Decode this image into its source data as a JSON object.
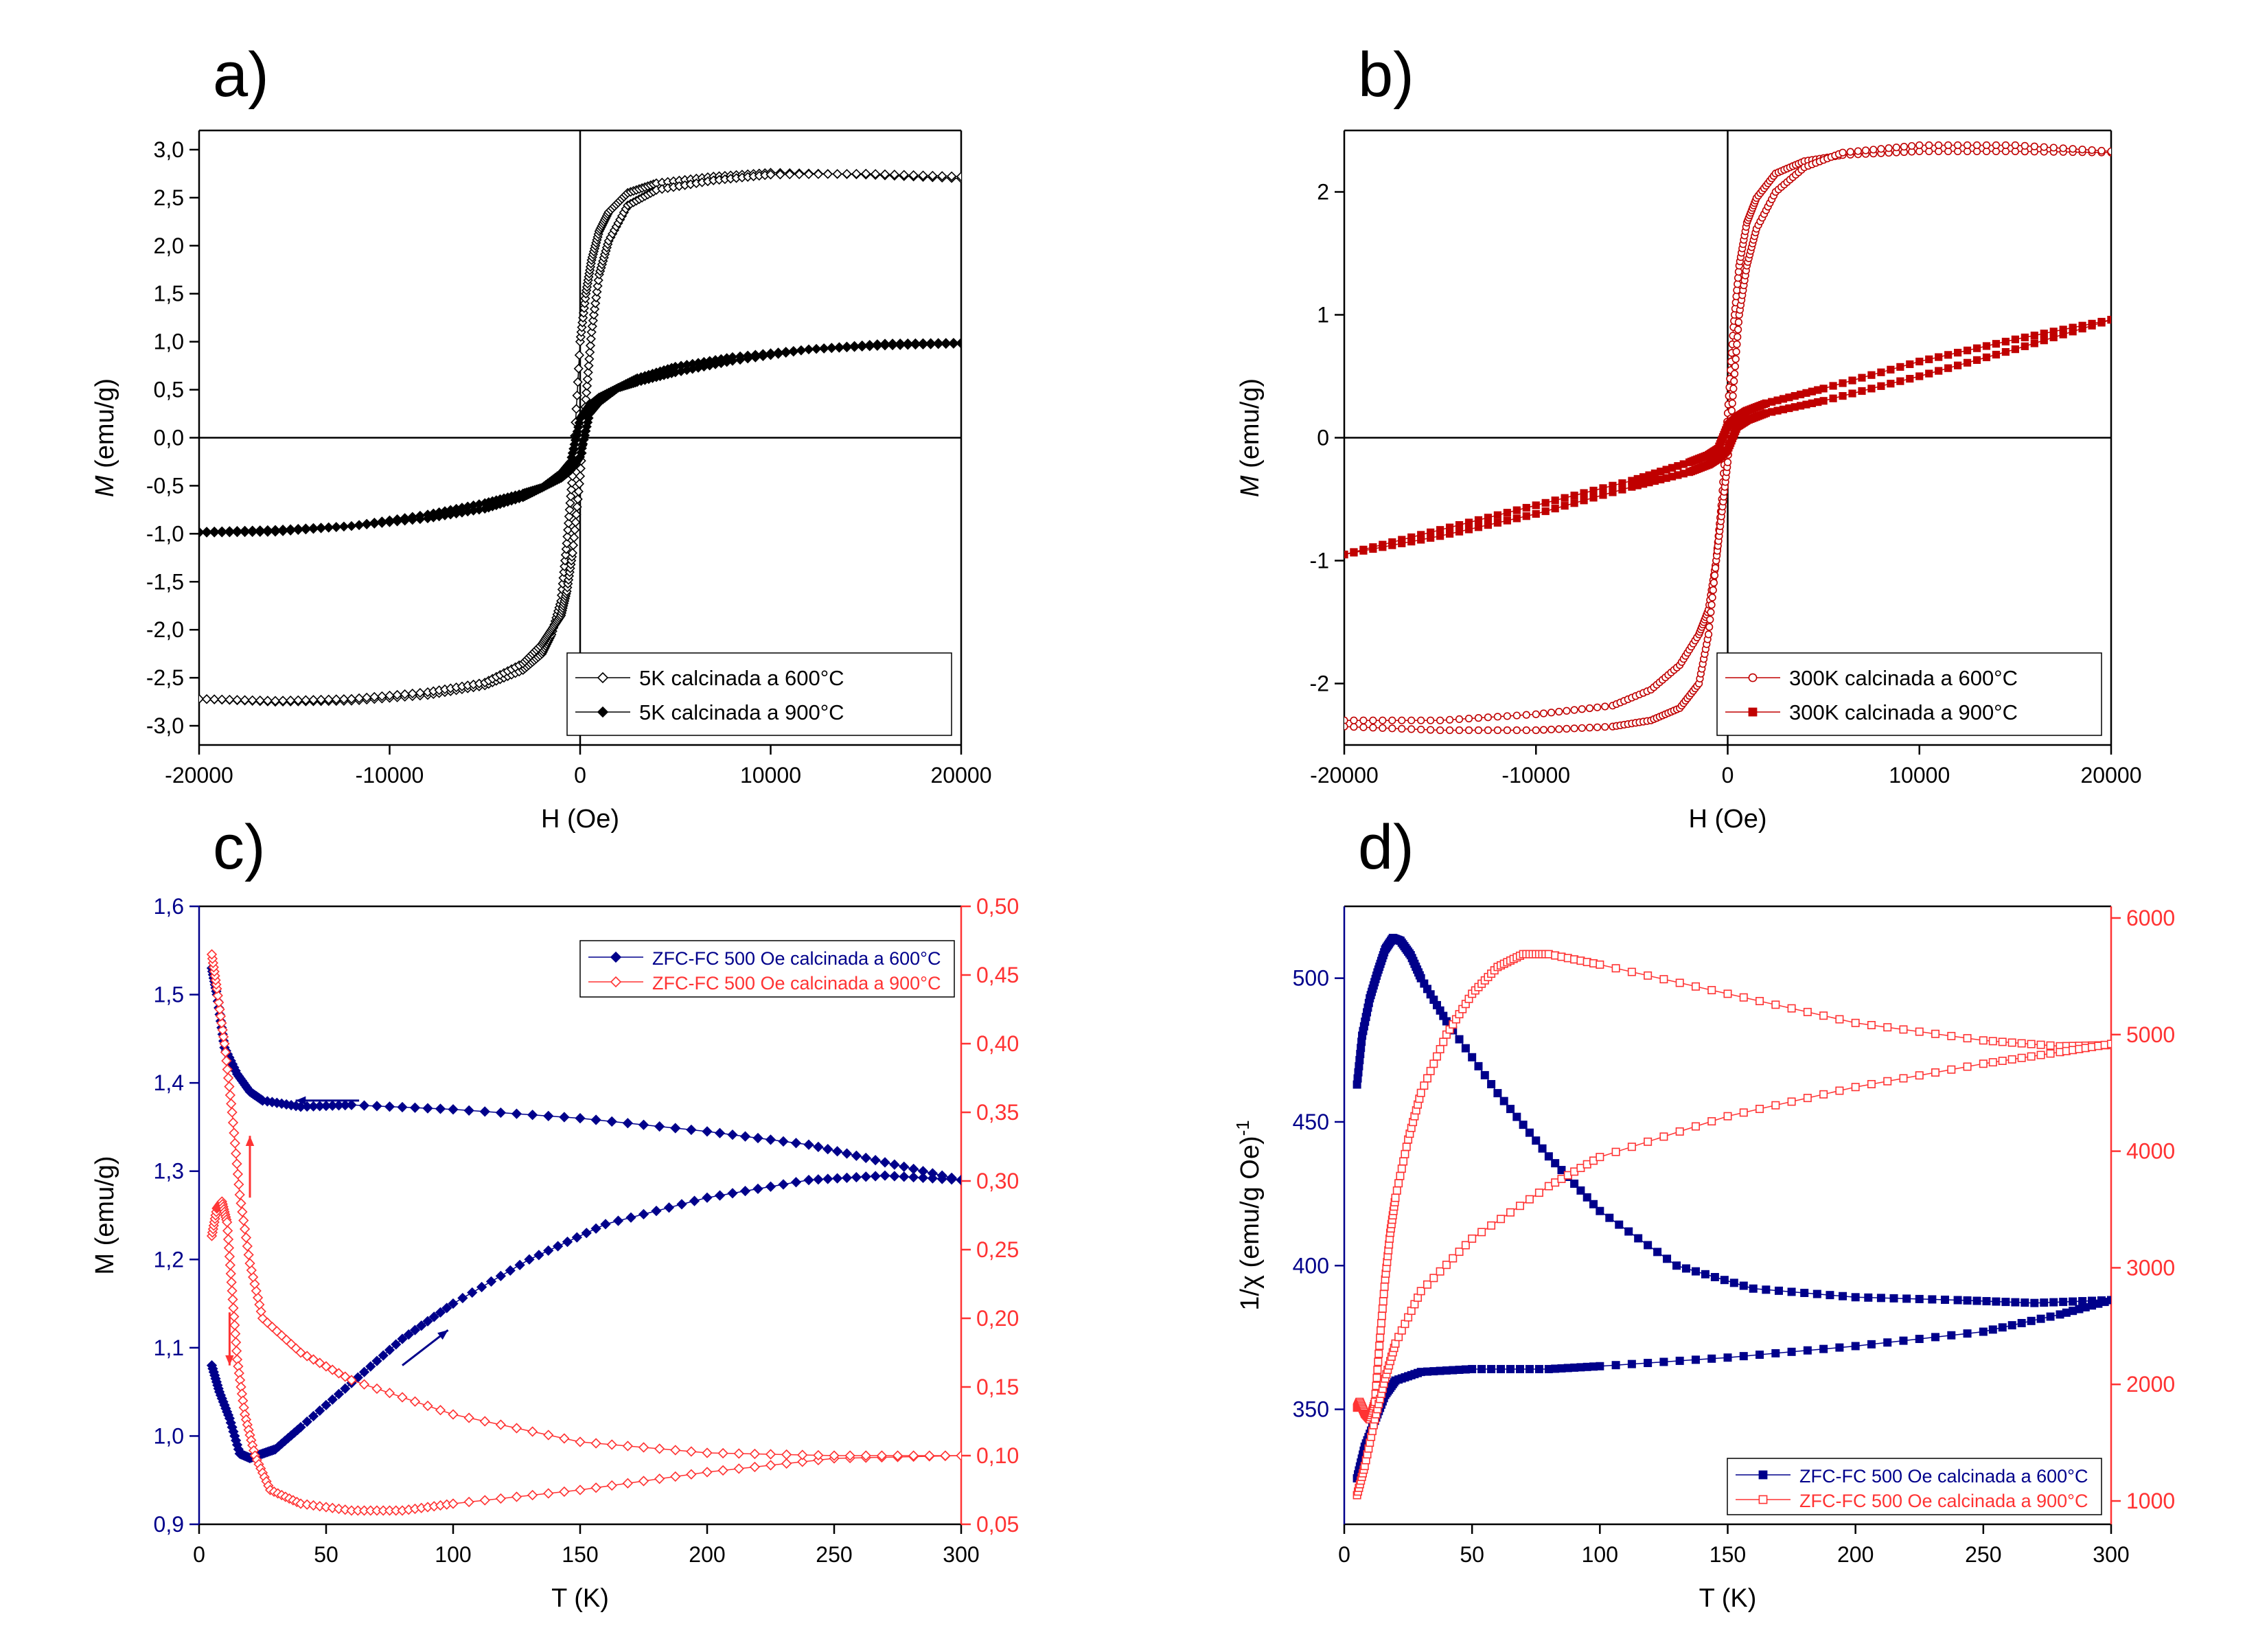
{
  "chart_data": [
    {
      "panel": "a)",
      "type": "line",
      "xlabel": "H (Oe)",
      "ylabel": "M (emu/g)",
      "xlim": [
        -20000,
        20000
      ],
      "ylim": [
        -3.2,
        3.2
      ],
      "xticks": [
        -20000,
        -10000,
        0,
        10000,
        20000
      ],
      "xtick_labels": [
        "-20000",
        "-10000",
        "0",
        "10000",
        "20000"
      ],
      "yticks": [
        -3.0,
        -2.5,
        -2.0,
        -1.5,
        -1.0,
        -0.5,
        0.0,
        0.5,
        1.0,
        1.5,
        2.0,
        2.5,
        3.0
      ],
      "ytick_labels": [
        "-3,0",
        "-2,5",
        "-2,0",
        "-1,5",
        "-1,0",
        "-0,5",
        "0,0",
        "0,5",
        "1,0",
        "1,5",
        "2,0",
        "2,5",
        "3,0"
      ],
      "legend_position": "bottom-right",
      "series": [
        {
          "name": "5K calcinada a 600°C",
          "color": "#000000",
          "marker": "open-diamond",
          "x": [
            -20000,
            -16000,
            -12000,
            -8000,
            -5000,
            -3000,
            -2000,
            -1500,
            -1000,
            -700,
            -400,
            0,
            300,
            600,
            1000,
            1500,
            2500,
            4000,
            7000,
            10000,
            15000,
            20000
          ],
          "y_descending": [
            -2.72,
            -2.75,
            -2.74,
            -2.68,
            -2.58,
            -2.42,
            -2.25,
            -2.05,
            -1.7,
            -1.1,
            -0.4,
            1.0,
            1.5,
            1.85,
            2.15,
            2.35,
            2.55,
            2.65,
            2.72,
            2.76,
            2.74,
            2.7
          ],
          "y_ascending": [
            -2.72,
            -2.74,
            -2.72,
            -2.65,
            -2.55,
            -2.35,
            -2.15,
            -2.0,
            -1.85,
            -1.6,
            -1.2,
            -0.4,
            0.4,
            1.1,
            1.7,
            2.05,
            2.42,
            2.58,
            2.68,
            2.74,
            2.75,
            2.72
          ]
        },
        {
          "name": "5K calcinada a 900°C",
          "color": "#000000",
          "marker": "filled-diamond",
          "x": [
            -20000,
            -16000,
            -12000,
            -8000,
            -5000,
            -3000,
            -2000,
            -1000,
            -500,
            0,
            500,
            1000,
            2000,
            3000,
            5000,
            8000,
            12000,
            16000,
            20000
          ],
          "y_descending": [
            -0.98,
            -0.96,
            -0.92,
            -0.84,
            -0.74,
            -0.62,
            -0.52,
            -0.37,
            -0.25,
            0.2,
            0.34,
            0.42,
            0.52,
            0.58,
            0.68,
            0.8,
            0.92,
            0.98,
            0.99
          ],
          "y_ascending": [
            -0.99,
            -0.98,
            -0.92,
            -0.8,
            -0.68,
            -0.58,
            -0.52,
            -0.42,
            -0.34,
            -0.2,
            0.25,
            0.37,
            0.52,
            0.62,
            0.74,
            0.84,
            0.92,
            0.96,
            0.98
          ]
        }
      ]
    },
    {
      "panel": "b)",
      "type": "line",
      "xlabel": "H (Oe)",
      "ylabel": "M (emu/g)",
      "xlim": [
        -20000,
        20000
      ],
      "ylim": [
        -2.5,
        2.5
      ],
      "xticks": [
        -20000,
        -10000,
        0,
        10000,
        20000
      ],
      "xtick_labels": [
        "-20000",
        "-10000",
        "0",
        "10000",
        "20000"
      ],
      "yticks": [
        -2,
        -1,
        0,
        1,
        2
      ],
      "ytick_labels": [
        "-2",
        "-1",
        "0",
        "1",
        "2"
      ],
      "legend_position": "bottom-right",
      "series": [
        {
          "name": "300K calcinada a 600°C",
          "color": "#c00000",
          "marker": "open-circle",
          "x": [
            -20000,
            -15000,
            -10000,
            -6000,
            -4000,
            -2500,
            -1500,
            -1000,
            -600,
            -300,
            0,
            300,
            600,
            1000,
            1500,
            2500,
            4000,
            6000,
            10000,
            15000,
            20000
          ],
          "y_descending": [
            -2.3,
            -2.3,
            -2.25,
            -2.18,
            -2.05,
            -1.85,
            -1.6,
            -1.4,
            -1.0,
            -0.5,
            0.2,
            0.9,
            1.4,
            1.75,
            1.95,
            2.15,
            2.25,
            2.3,
            2.33,
            2.33,
            2.32
          ],
          "y_ascending": [
            -2.35,
            -2.38,
            -2.38,
            -2.35,
            -2.3,
            -2.2,
            -2.0,
            -1.6,
            -1.0,
            -0.6,
            -0.2,
            0.4,
            1.0,
            1.4,
            1.7,
            2.0,
            2.2,
            2.32,
            2.38,
            2.38,
            2.33
          ]
        },
        {
          "name": "300K calcinada a 900°C",
          "color": "#c00000",
          "marker": "filled-square",
          "x": [
            -20000,
            -15000,
            -10000,
            -5000,
            -2000,
            -1000,
            -500,
            0,
            500,
            1000,
            2000,
            5000,
            10000,
            15000,
            20000
          ],
          "y_descending": [
            -0.95,
            -0.75,
            -0.55,
            -0.35,
            -0.2,
            -0.14,
            -0.09,
            0.1,
            0.17,
            0.22,
            0.28,
            0.4,
            0.62,
            0.8,
            0.96
          ],
          "y_ascending": [
            -0.95,
            -0.8,
            -0.62,
            -0.4,
            -0.28,
            -0.22,
            -0.17,
            -0.1,
            0.09,
            0.14,
            0.2,
            0.3,
            0.5,
            0.72,
            0.96
          ]
        }
      ]
    },
    {
      "panel": "c)",
      "type": "line",
      "xlabel": "T (K)",
      "ylabel": "M (emu/g)",
      "xlim": [
        0,
        300
      ],
      "ylim": [
        0.9,
        1.6
      ],
      "y2lim": [
        0.05,
        0.5
      ],
      "xticks": [
        0,
        50,
        100,
        150,
        200,
        250,
        300
      ],
      "xtick_labels": [
        "0",
        "50",
        "100",
        "150",
        "200",
        "250",
        "300"
      ],
      "yticks": [
        0.9,
        1.0,
        1.1,
        1.2,
        1.3,
        1.4,
        1.5,
        1.6
      ],
      "ytick_labels": [
        "0,9",
        "1,0",
        "1,1",
        "1,2",
        "1,3",
        "1,4",
        "1,5",
        "1,6"
      ],
      "y2ticks": [
        0.05,
        0.1,
        0.15,
        0.2,
        0.25,
        0.3,
        0.35,
        0.4,
        0.45,
        0.5
      ],
      "y2tick_labels": [
        "0,05",
        "0,10",
        "0,15",
        "0,20",
        "0,25",
        "0,30",
        "0,35",
        "0,40",
        "0,45",
        "0,50"
      ],
      "left_axis_color": "#00008b",
      "right_axis_color": "#ff3333",
      "legend_position": "top-right",
      "series": [
        {
          "name": "ZFC-FC 500 Oe calcinada a 600°C",
          "axis": "left",
          "color": "#00008b",
          "marker": "filled-diamond",
          "zfc": {
            "x": [
              5,
              8,
              12,
              16,
              20,
              25,
              30,
              40,
              60,
              80,
              100,
              130,
              160,
              200,
              240,
              270,
              300
            ],
            "y": [
              1.08,
              1.05,
              1.02,
              0.98,
              0.975,
              0.98,
              0.985,
              1.01,
              1.06,
              1.11,
              1.15,
              1.2,
              1.24,
              1.27,
              1.29,
              1.295,
              1.29
            ]
          },
          "fc": {
            "x": [
              300,
              270,
              240,
              200,
              150,
              100,
              60,
              40,
              25,
              20,
              15,
              10,
              7,
              5
            ],
            "y": [
              1.29,
              1.31,
              1.33,
              1.345,
              1.36,
              1.37,
              1.375,
              1.373,
              1.38,
              1.39,
              1.41,
              1.44,
              1.5,
              1.53
            ]
          }
        },
        {
          "name": "ZFC-FC 500 Oe calcinada a 900°C",
          "axis": "right",
          "color": "#ff3333",
          "marker": "open-diamond",
          "zfc": {
            "x": [
              5,
              7,
              9,
              11,
              13,
              15,
              18,
              22,
              28,
              40,
              60,
              80,
              100,
              150,
              200,
              250,
              300
            ],
            "y": [
              0.26,
              0.28,
              0.285,
              0.27,
              0.22,
              0.17,
              0.13,
              0.1,
              0.075,
              0.065,
              0.06,
              0.06,
              0.065,
              0.075,
              0.088,
              0.098,
              0.1
            ]
          },
          "fc": {
            "x": [
              300,
              250,
              200,
              150,
              100,
              60,
              40,
              25,
              20,
              16,
              13,
              10,
              7,
              5
            ],
            "y": [
              0.1,
              0.1,
              0.102,
              0.11,
              0.13,
              0.155,
              0.175,
              0.2,
              0.24,
              0.29,
              0.35,
              0.4,
              0.44,
              0.465
            ]
          }
        }
      ]
    },
    {
      "panel": "d)",
      "type": "line",
      "xlabel": "T (K)",
      "ylabel": "1/χ (emu/g Oe)",
      "ylabel_superscript": "-1",
      "xlim": [
        0,
        300
      ],
      "ylim": [
        310,
        525
      ],
      "y2lim": [
        800,
        6100
      ],
      "xticks": [
        0,
        50,
        100,
        150,
        200,
        250,
        300
      ],
      "xtick_labels": [
        "0",
        "50",
        "100",
        "150",
        "200",
        "250",
        "300"
      ],
      "yticks": [
        350,
        400,
        450,
        500
      ],
      "ytick_labels": [
        "350",
        "400",
        "450",
        "500"
      ],
      "y2ticks": [
        1000,
        2000,
        3000,
        4000,
        5000,
        6000
      ],
      "y2tick_labels": [
        "1000",
        "2000",
        "3000",
        "4000",
        "5000",
        "6000"
      ],
      "left_axis_color": "#00008b",
      "right_axis_color": "#ff3333",
      "legend_position": "bottom-right",
      "series": [
        {
          "name": "ZFC-FC 500 Oe calcinada a 600°C",
          "axis": "left",
          "color": "#00008b",
          "marker": "filled-square",
          "zfc": {
            "x": [
              5,
              7,
              10,
              13,
              16,
              19,
              22,
              26,
              30,
              40,
              60,
              80,
              100,
              130,
              160,
              200,
              240,
              270,
              300
            ],
            "y": [
              463,
              480,
              493,
              502,
              510,
              514,
              513,
              508,
              500,
              485,
              460,
              438,
              419,
              400,
              392,
              389,
              388,
              387,
              388
            ]
          },
          "fc": {
            "x": [
              5,
              8,
              12,
              16,
              20,
              30,
              50,
              80,
              100,
              150,
              200,
              250,
              280,
              300
            ],
            "y": [
              326,
              337,
              346,
              355,
              360,
              363,
              364,
              364,
              365,
              368,
              372,
              377,
              383,
              388
            ]
          }
        },
        {
          "name": "ZFC-FC 500 Oe calcinada a 900°C",
          "axis": "right",
          "color": "#ff3333",
          "marker": "open-square",
          "zfc": {
            "x": [
              5,
              6,
              8,
              10,
              12,
              14,
              16,
              18,
              20,
              25,
              30,
              40,
              50,
              60,
              70,
              80,
              100,
              150,
              200,
              250,
              280,
              300
            ],
            "y": [
              1800,
              1850,
              1750,
              1700,
              1850,
              2400,
              2900,
              3300,
              3600,
              4100,
              4500,
              5000,
              5350,
              5580,
              5690,
              5690,
              5600,
              5350,
              5100,
              4950,
              4900,
              4910
            ]
          },
          "fc": {
            "x": [
              5,
              8,
              12,
              16,
              20,
              30,
              50,
              80,
              100,
              150,
              200,
              250,
              280,
              300
            ],
            "y": [
              1050,
              1300,
              1700,
              2050,
              2350,
              2800,
              3250,
              3700,
              3950,
              4300,
              4550,
              4750,
              4850,
              4920
            ]
          }
        }
      ]
    }
  ]
}
